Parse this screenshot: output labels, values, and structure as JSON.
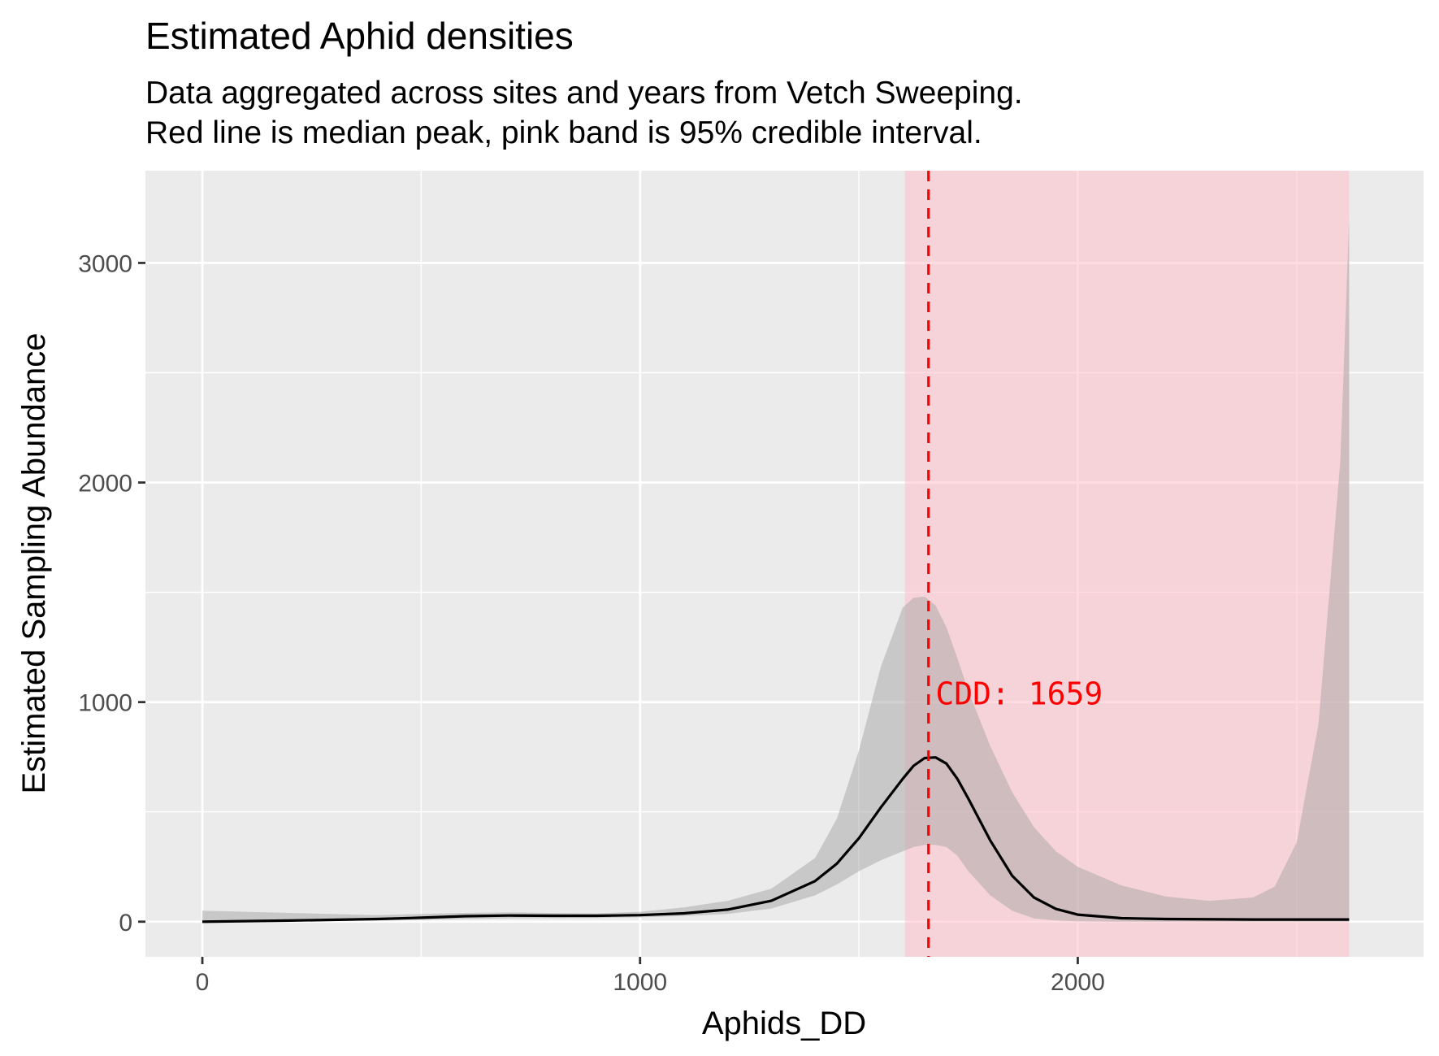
{
  "chart_data": {
    "type": "area",
    "title": "Estimated Aphid densities",
    "subtitle_lines": [
      "Data aggregated across sites and years from Vetch Sweeping.",
      "Red line is median peak, pink band is 95% credible interval."
    ],
    "xlabel": "Aphids_DD",
    "ylabel": "Estimated Sampling Abundance",
    "xlim": [
      -130,
      2790
    ],
    "ylim": [
      -160,
      3420
    ],
    "x_ticks": [
      0,
      1000,
      2000
    ],
    "y_ticks": [
      0,
      1000,
      2000,
      3000
    ],
    "grid": true,
    "background": "#ebebeb",
    "series": [
      {
        "type": "line",
        "color": "#000000",
        "x": [
          0,
          200,
          400,
          500,
          600,
          700,
          800,
          900,
          1000,
          1100,
          1200,
          1300,
          1400,
          1450,
          1500,
          1550,
          1600,
          1625,
          1650,
          1675,
          1700,
          1725,
          1750,
          1800,
          1850,
          1900,
          1950,
          2000,
          2100,
          2200,
          2400,
          2620
        ],
        "y": [
          0,
          5,
          12,
          18,
          25,
          28,
          27,
          27,
          30,
          38,
          55,
          95,
          185,
          265,
          380,
          520,
          650,
          710,
          745,
          748,
          720,
          650,
          560,
          370,
          210,
          110,
          58,
          32,
          16,
          12,
          10,
          10
        ]
      },
      {
        "type": "ribbon",
        "color": "#bfbfbf",
        "x": [
          0,
          200,
          400,
          500,
          600,
          700,
          800,
          900,
          1000,
          1100,
          1200,
          1300,
          1400,
          1450,
          1500,
          1550,
          1600,
          1625,
          1650,
          1675,
          1700,
          1725,
          1750,
          1800,
          1850,
          1900,
          1950,
          2000,
          2100,
          2200,
          2300,
          2400,
          2450,
          2500,
          2550,
          2600,
          2620
        ],
        "lower": [
          0,
          3,
          5,
          8,
          12,
          15,
          16,
          17,
          20,
          26,
          35,
          60,
          120,
          170,
          230,
          280,
          320,
          340,
          350,
          350,
          340,
          300,
          230,
          120,
          50,
          15,
          5,
          2,
          0,
          0,
          0,
          0,
          0,
          0,
          0,
          0,
          0
        ],
        "upper": [
          50,
          40,
          30,
          35,
          40,
          42,
          40,
          38,
          45,
          65,
          95,
          150,
          290,
          470,
          780,
          1160,
          1430,
          1475,
          1480,
          1440,
          1340,
          1200,
          1050,
          800,
          590,
          430,
          320,
          250,
          165,
          115,
          95,
          110,
          160,
          360,
          900,
          2100,
          3200
        ]
      }
    ],
    "credible_interval": {
      "lower": 1605,
      "upper": 2620,
      "color": "#ffc0cb"
    },
    "median_peak": {
      "x": 1659,
      "color": "#ff0000",
      "style": "dashed"
    },
    "annotation": {
      "text": "CDD: 1659",
      "x": 1675,
      "y": 990,
      "color": "#ff0000"
    }
  }
}
